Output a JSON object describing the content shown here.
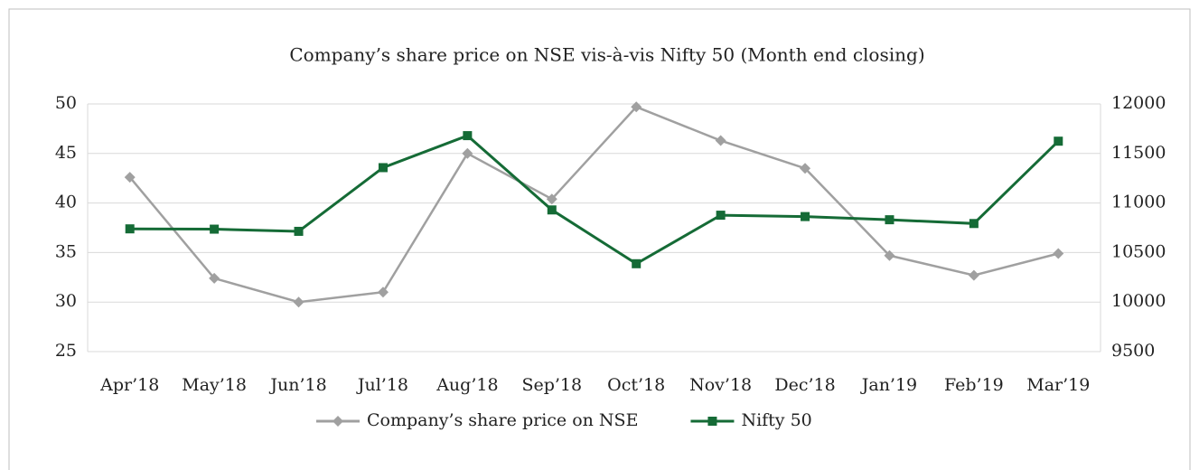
{
  "chart_data": {
    "type": "line",
    "title": "Company’s share price on NSE vis-à-vis Nifty 50 (Month end closing)",
    "categories": [
      "Apr’18",
      "May’18",
      "Jun’18",
      "Jul’18",
      "Aug’18",
      "Sep’18",
      "Oct’18",
      "Nov’18",
      "Dec’18",
      "Jan’19",
      "Feb’19",
      "Mar’19"
    ],
    "series": [
      {
        "name": "Company’s share price on NSE",
        "color": "#a0a0a0",
        "marker": "diamond",
        "axis": "y",
        "values": [
          42.6,
          32.4,
          30.0,
          31.0,
          45.0,
          40.4,
          49.7,
          46.3,
          43.5,
          34.7,
          32.7,
          34.9
        ]
      },
      {
        "name": "Nifty 50",
        "color": "#156b36",
        "marker": "square",
        "axis": "y2",
        "values": [
          10739,
          10736,
          10714,
          11357,
          11680,
          10930,
          10387,
          10877,
          10863,
          10831,
          10793,
          11624
        ]
      }
    ],
    "ylim": [
      25,
      50
    ],
    "yticks": [
      25,
      30,
      35,
      40,
      45,
      50
    ],
    "y2lim": [
      9500,
      12000
    ],
    "y2ticks": [
      9500,
      10000,
      10500,
      11000,
      11500,
      12000
    ],
    "grid": true,
    "legend": "bottom"
  }
}
